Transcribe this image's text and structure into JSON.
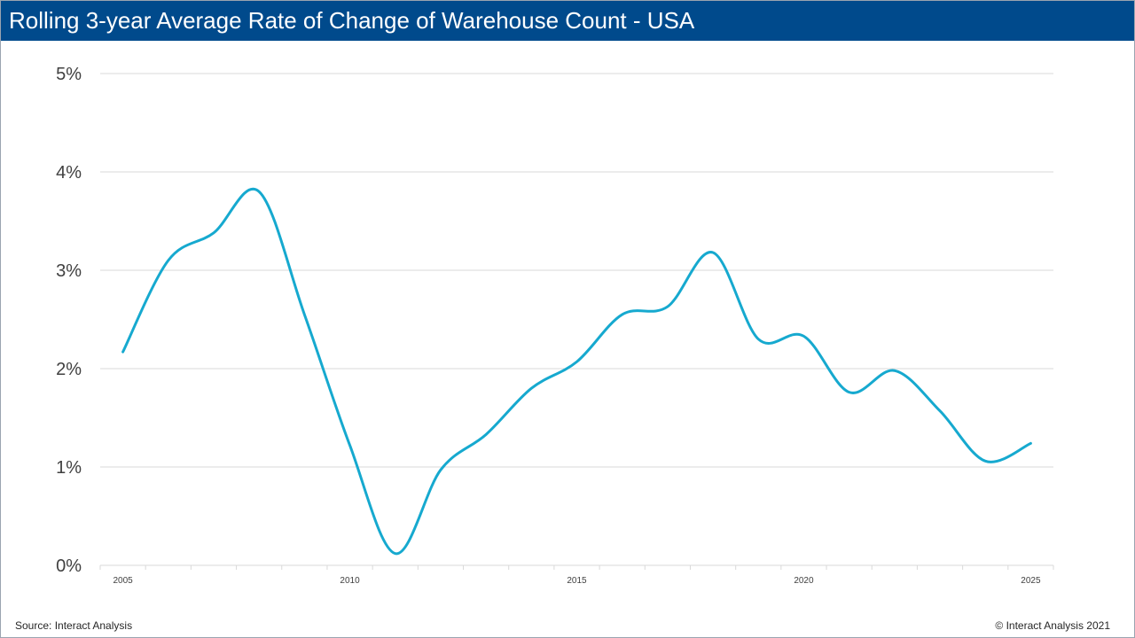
{
  "title": "Rolling 3-year Average Rate of Change of Warehouse Count - USA",
  "source": "Source: Interact Analysis",
  "copyright": "© Interact Analysis 2021",
  "colors": {
    "header_bg": "#004a8c",
    "line": "#16a9cf",
    "grid": "#d9d9d9"
  },
  "chart_data": {
    "type": "line",
    "title": "Rolling 3-year Average Rate of Change of Warehouse Count - USA",
    "xlabel": "",
    "ylabel": "",
    "xlim": [
      2004.5,
      2025.5
    ],
    "ylim": [
      0,
      5
    ],
    "grid": true,
    "y_ticks": [
      0,
      1,
      2,
      3,
      4,
      5
    ],
    "y_tick_labels": [
      "0%",
      "1%",
      "2%",
      "3%",
      "4%",
      "5%"
    ],
    "x_tick_labels": [
      {
        "x": 2005,
        "label": "2005"
      },
      {
        "x": 2010,
        "label": "2010"
      },
      {
        "x": 2015,
        "label": "2015"
      },
      {
        "x": 2020,
        "label": "2020"
      },
      {
        "x": 2025,
        "label": "2025"
      }
    ],
    "series": [
      {
        "name": "Rolling 3-year Average Rate of Change",
        "unit": "%",
        "x": [
          2005,
          2006,
          2007,
          2008,
          2009,
          2010,
          2011,
          2012,
          2013,
          2014,
          2015,
          2016,
          2017,
          2018,
          2019,
          2020,
          2021,
          2022,
          2023,
          2024,
          2025
        ],
        "values": [
          2.17,
          3.1,
          3.38,
          3.8,
          2.55,
          1.22,
          0.12,
          0.97,
          1.33,
          1.8,
          2.07,
          2.55,
          2.63,
          3.18,
          2.3,
          2.33,
          1.76,
          1.98,
          1.57,
          1.06,
          1.24
        ]
      }
    ]
  }
}
